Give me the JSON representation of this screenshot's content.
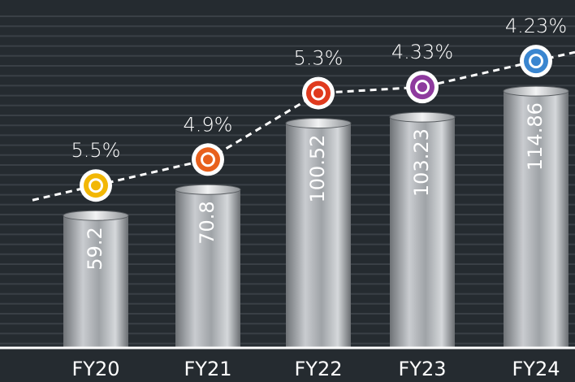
{
  "chart_data": {
    "type": "bar",
    "categories": [
      "FY20",
      "FY21",
      "FY22",
      "FY23",
      "FY24"
    ],
    "series": [
      {
        "type": "bar",
        "color": "#a9adb1",
        "values": [
          59.2,
          70.8,
          100.52,
          103.23,
          114.86
        ]
      },
      {
        "type": "line",
        "color": "#ffffff",
        "values": [
          5.5,
          4.9,
          5.3,
          4.33,
          4.23
        ],
        "value_labels": [
          "5.5%",
          "4.9%",
          "5.3%",
          "4.33%",
          "4.23%"
        ],
        "marker_colors": [
          "#f2b705",
          "#e8601c",
          "#e03a1e",
          "#8e3a9e",
          "#3a86d0"
        ]
      }
    ]
  }
}
